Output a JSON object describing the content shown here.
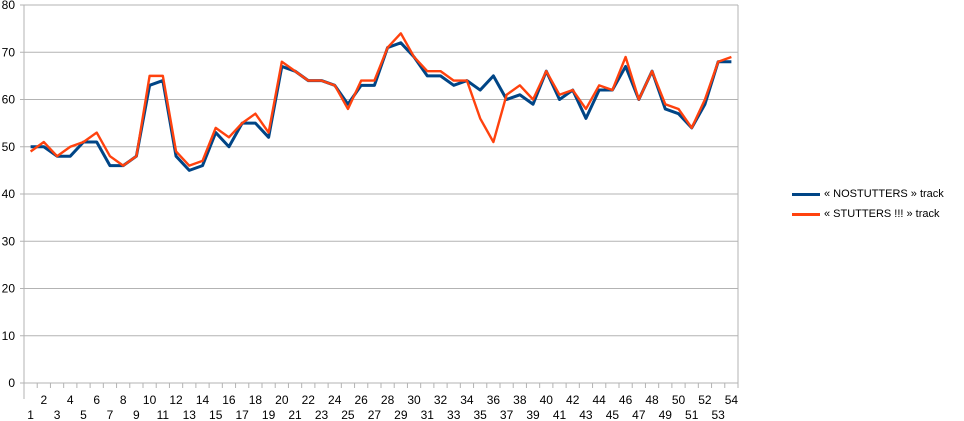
{
  "chart_data": {
    "type": "line",
    "title": "",
    "xlabel": "",
    "ylabel": "",
    "ylim": [
      0,
      80
    ],
    "yticks": [
      0,
      10,
      20,
      30,
      40,
      50,
      60,
      70,
      80
    ],
    "grid": true,
    "legend_position": "right",
    "categories": [
      "1",
      "2",
      "3",
      "4",
      "5",
      "6",
      "7",
      "8",
      "9",
      "10",
      "11",
      "12",
      "13",
      "14",
      "15",
      "16",
      "17",
      "18",
      "19",
      "20",
      "21",
      "22",
      "23",
      "24",
      "25",
      "26",
      "27",
      "28",
      "29",
      "30",
      "31",
      "32",
      "33",
      "34",
      "35",
      "36",
      "37",
      "38",
      "39",
      "40",
      "41",
      "42",
      "43",
      "44",
      "45",
      "46",
      "47",
      "48",
      "49",
      "50",
      "51",
      "52",
      "53",
      "54"
    ],
    "series": [
      {
        "name": "« NOSTUTTERS » track",
        "color": "#004586",
        "values": [
          50,
          50,
          48,
          48,
          51,
          51,
          46,
          46,
          48,
          63,
          64,
          48,
          45,
          46,
          53,
          50,
          55,
          55,
          52,
          67,
          66,
          64,
          64,
          63,
          59,
          63,
          63,
          71,
          72,
          69,
          65,
          65,
          63,
          64,
          62,
          65,
          60,
          61,
          59,
          66,
          60,
          62,
          56,
          62,
          62,
          67,
          60,
          66,
          58,
          57,
          54,
          59,
          68,
          68
        ]
      },
      {
        "name": "« STUTTERS !!! » track",
        "color": "#ff420e",
        "values": [
          49,
          51,
          48,
          50,
          51,
          53,
          48,
          46,
          48,
          65,
          65,
          49,
          46,
          47,
          54,
          52,
          55,
          57,
          53,
          68,
          66,
          64,
          64,
          63,
          58,
          64,
          64,
          71,
          74,
          69,
          66,
          66,
          64,
          64,
          56,
          51,
          61,
          63,
          60,
          66,
          61,
          62,
          58,
          63,
          62,
          69,
          60,
          66,
          59,
          58,
          54,
          60,
          68,
          69
        ]
      }
    ]
  }
}
